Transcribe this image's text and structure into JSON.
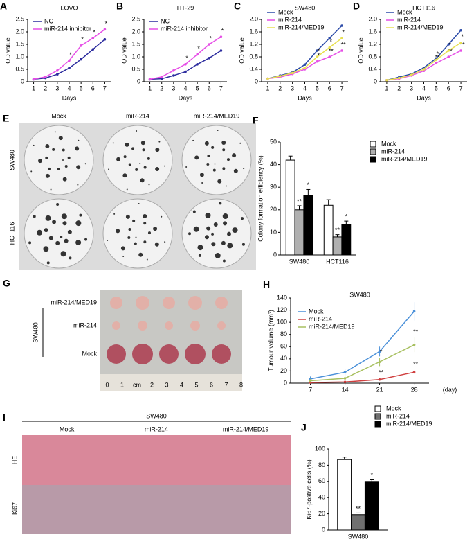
{
  "chart_data": [
    {
      "type": "line",
      "panel": "A",
      "title": "LOVO",
      "xlabel": "Days",
      "ylabel": "OD value",
      "x": [
        1,
        2,
        3,
        4,
        5,
        6,
        7
      ],
      "xlim": [
        0.5,
        7.5
      ],
      "xticks": [
        1,
        2,
        3,
        4,
        5,
        6,
        7
      ],
      "ylim": [
        0,
        2.5
      ],
      "yticks": [
        0,
        0.5,
        {
          "value": 1,
          "label": "1.0"
        },
        1.5,
        {
          "value": 2,
          "label": "2.0"
        },
        2.5
      ],
      "series": [
        {
          "name": "NC",
          "color": "#2b2b9e",
          "values": [
            0.1,
            0.15,
            0.3,
            0.55,
            0.9,
            1.3,
            1.7
          ]
        },
        {
          "name": "miR-214 inhibitor",
          "color": "#e64ee6",
          "values": [
            0.1,
            0.2,
            0.45,
            0.85,
            1.45,
            1.75,
            2.1
          ],
          "significance": [
            null,
            null,
            null,
            "*",
            "*",
            "*",
            "*"
          ]
        }
      ]
    },
    {
      "type": "line",
      "panel": "B",
      "title": "HT-29",
      "xlabel": "Days",
      "ylabel": "OD value",
      "x": [
        1,
        2,
        3,
        4,
        5,
        6,
        7
      ],
      "xlim": [
        0.5,
        7.5
      ],
      "xticks": [
        1,
        2,
        3,
        4,
        5,
        6,
        7
      ],
      "ylim": [
        0,
        2.5
      ],
      "yticks": [
        0,
        0.5,
        {
          "value": 1,
          "label": "1.0"
        },
        1.5,
        {
          "value": 2,
          "label": "2.0"
        },
        2.5
      ],
      "series": [
        {
          "name": "NC",
          "color": "#2b2b9e",
          "values": [
            0.1,
            0.12,
            0.25,
            0.4,
            0.7,
            0.95,
            1.25
          ]
        },
        {
          "name": "miR-214 inhibitor",
          "color": "#e64ee6",
          "values": [
            0.1,
            0.2,
            0.45,
            0.7,
            1.1,
            1.5,
            1.8
          ],
          "significance": [
            null,
            null,
            null,
            "*",
            "*",
            "*",
            "*"
          ]
        }
      ]
    },
    {
      "type": "line",
      "panel": "C",
      "title": "SW480",
      "xlabel": "Days",
      "ylabel": "OD value",
      "x": [
        1,
        2,
        3,
        4,
        5,
        6,
        7
      ],
      "xlim": [
        0.5,
        7.5
      ],
      "xticks": [
        1,
        2,
        3,
        4,
        5,
        6,
        7
      ],
      "ylim": [
        0,
        2
      ],
      "yticks": [
        0,
        0.4,
        0.8,
        1.2,
        1.6,
        {
          "value": 2,
          "label": "2.0"
        }
      ],
      "series": [
        {
          "name": "Mock",
          "color": "#2b4aa8",
          "values": [
            0.1,
            0.2,
            0.3,
            0.55,
            1.0,
            1.4,
            1.8
          ]
        },
        {
          "name": "miR-214",
          "color": "#e64ee6",
          "values": [
            0.1,
            0.15,
            0.25,
            0.4,
            0.65,
            0.8,
            1.0
          ],
          "significance": [
            null,
            null,
            null,
            null,
            "*",
            "**",
            "**"
          ]
        },
        {
          "name": "miR-214/MED19",
          "color": "#e8e050",
          "values": [
            0.1,
            0.18,
            0.28,
            0.45,
            0.8,
            1.1,
            1.4
          ],
          "significance": [
            null,
            null,
            null,
            null,
            "*",
            "*",
            "*"
          ]
        }
      ]
    },
    {
      "type": "line",
      "panel": "D",
      "title": "HCT116",
      "xlabel": "Days",
      "ylabel": "OD value",
      "x": [
        1,
        2,
        3,
        4,
        5,
        6,
        7
      ],
      "xlim": [
        0.5,
        7.5
      ],
      "xticks": [
        1,
        2,
        3,
        4,
        5,
        6,
        7
      ],
      "ylim": [
        0,
        2
      ],
      "yticks": [
        0,
        0.4,
        0.8,
        1.2,
        1.6,
        {
          "value": 2,
          "label": "2.0"
        }
      ],
      "series": [
        {
          "name": "Mock",
          "color": "#2b4aa8",
          "values": [
            0.05,
            0.15,
            0.25,
            0.45,
            0.75,
            1.2,
            1.65
          ]
        },
        {
          "name": "miR-214",
          "color": "#e64ee6",
          "values": [
            0.05,
            0.1,
            0.2,
            0.35,
            0.6,
            0.8,
            1.0
          ],
          "significance": [
            null,
            null,
            null,
            null,
            "**",
            "**",
            "**"
          ]
        },
        {
          "name": "miR-214/MED19",
          "color": "#e8e050",
          "values": [
            0.05,
            0.12,
            0.22,
            0.4,
            0.7,
            1.0,
            1.25
          ],
          "significance": [
            null,
            null,
            null,
            null,
            "*",
            "*",
            "*"
          ]
        }
      ]
    },
    {
      "type": "bar",
      "panel": "F",
      "ylabel": "Colony formation efficiency (%)",
      "categories": [
        "SW480",
        "HCT116"
      ],
      "ylim": [
        0,
        50
      ],
      "yticks": [
        0,
        10,
        20,
        30,
        40,
        50
      ],
      "series": [
        {
          "name": "Mock",
          "color": "#ffffff",
          "values": [
            42,
            22
          ],
          "errors": [
            1.8,
            2.5
          ]
        },
        {
          "name": "miR-214",
          "color": "#b0b0b0",
          "values": [
            20,
            8
          ],
          "errors": [
            1.8,
            1
          ],
          "significance": [
            "**",
            "**"
          ]
        },
        {
          "name": "miR-214/MED19",
          "color": "#000000",
          "values": [
            26.5,
            13.5
          ],
          "errors": [
            2.5,
            1.5
          ],
          "significance": [
            "*",
            "*"
          ]
        }
      ]
    },
    {
      "type": "line",
      "panel": "H",
      "title": "SW480",
      "xlabel": "(day)",
      "ylabel": "Tumour volume (mm³)",
      "x": [
        7,
        14,
        21,
        28
      ],
      "xlim": [
        3,
        31
      ],
      "xticks": [
        7,
        14,
        21,
        28
      ],
      "ylim": [
        0,
        140
      ],
      "yticks": [
        0,
        20,
        40,
        60,
        80,
        100,
        120,
        140
      ],
      "series": [
        {
          "name": "Mock",
          "color": "#4a90d9",
          "values": [
            7,
            18,
            52,
            118
          ],
          "errors": [
            4,
            5,
            8,
            15
          ]
        },
        {
          "name": "miR-214",
          "color": "#d04040",
          "values": [
            1,
            2,
            6,
            18
          ],
          "errors": [
            1,
            1,
            2,
            3
          ],
          "significance": [
            null,
            null,
            "**",
            "**"
          ]
        },
        {
          "name": "miR-214/MED19",
          "color": "#a8c060",
          "values": [
            4,
            8,
            35,
            63
          ],
          "errors": [
            3,
            4,
            7,
            12
          ],
          "significance": [
            null,
            null,
            "*",
            "**"
          ]
        }
      ]
    },
    {
      "type": "bar",
      "panel": "J",
      "ylabel": "Ki67-postive cells (%)",
      "categories": [
        "SW480"
      ],
      "ylim": [
        0,
        100
      ],
      "yticks": [
        0,
        20,
        40,
        60,
        80,
        100
      ],
      "series": [
        {
          "name": "Mock",
          "color": "#ffffff",
          "values": [
            87
          ],
          "errors": [
            3
          ]
        },
        {
          "name": "miR-214",
          "color": "#707070",
          "values": [
            19
          ],
          "errors": [
            2
          ],
          "significance": [
            "**"
          ]
        },
        {
          "name": "miR-214/MED19",
          "color": "#000000",
          "values": [
            60
          ],
          "errors": [
            2
          ],
          "significance": [
            "*"
          ]
        }
      ]
    }
  ],
  "images": {
    "E": {
      "panel": "E",
      "columns": [
        "Mock",
        "miR-214",
        "miR-214/MED19"
      ],
      "rows": [
        "SW480",
        "HCT116"
      ]
    },
    "G": {
      "panel": "G",
      "group": "SW480",
      "rows": [
        "miR-214/MED19",
        "miR-214",
        "Mock"
      ],
      "ruler": [
        "0",
        "1",
        "cm",
        "2",
        "3",
        "4",
        "5",
        "6",
        "7",
        "8"
      ]
    },
    "I": {
      "panel": "I",
      "group": "SW480",
      "columns": [
        "Mock",
        "miR-214",
        "miR-214/MED19"
      ],
      "rows": [
        "HE",
        "Ki67"
      ]
    }
  }
}
